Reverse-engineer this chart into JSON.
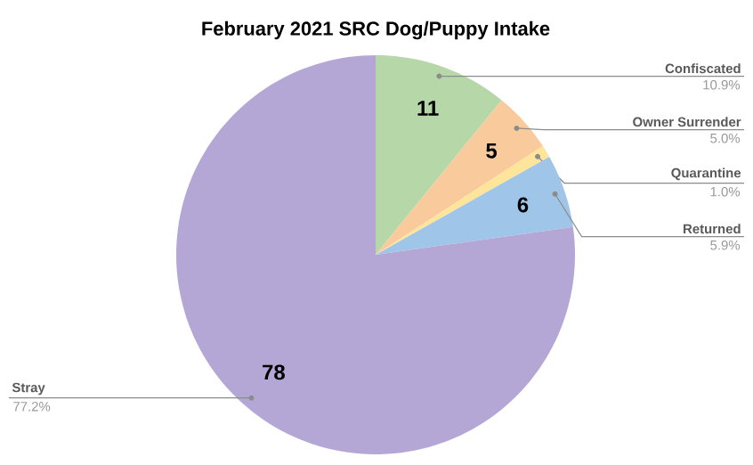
{
  "chart_data": {
    "type": "pie",
    "title": "February 2021 SRC Dog/Puppy Intake",
    "categories": [
      "Confiscated",
      "Owner Surrender",
      "Quarantine",
      "Returned",
      "Stray"
    ],
    "values": [
      11,
      5,
      1,
      6,
      78
    ],
    "value_labels": [
      "11",
      "5",
      null,
      "6",
      "78"
    ],
    "colors": [
      "#b6d7a8",
      "#f9cb9c",
      "#ffe599",
      "#9fc5e8",
      "#b4a7d6"
    ],
    "annotations": [
      "10.9%",
      "5.0%",
      "1.0%",
      "5.9%",
      "77.2%"
    ]
  }
}
